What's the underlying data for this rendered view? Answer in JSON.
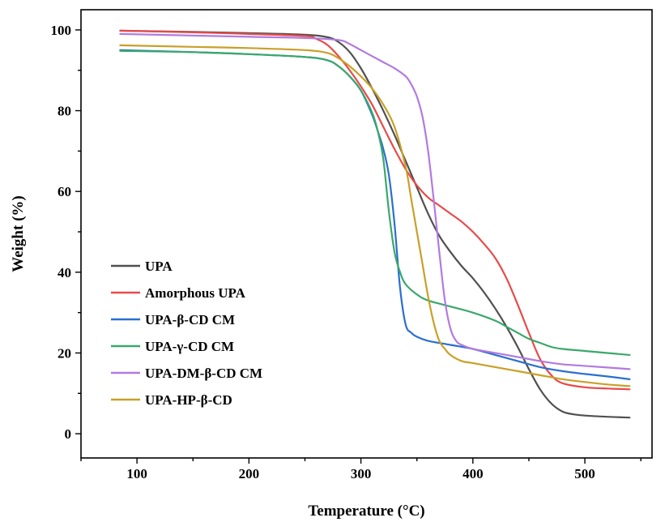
{
  "chart_data": {
    "type": "line",
    "xlabel": "Temperature (°C)",
    "ylabel": "Weight (%)",
    "xlim": [
      50,
      560
    ],
    "ylim": [
      -6,
      105
    ],
    "xticks": [
      100,
      200,
      300,
      400,
      500
    ],
    "yticks": [
      0,
      20,
      40,
      60,
      80,
      100
    ],
    "grid": false,
    "legend_position": "lower-left",
    "series": [
      {
        "name": "UPA",
        "color": "#505050",
        "x": [
          85,
          150,
          200,
          250,
          270,
          280,
          290,
          300,
          310,
          320,
          330,
          340,
          350,
          360,
          370,
          380,
          390,
          400,
          410,
          420,
          430,
          440,
          450,
          460,
          470,
          480,
          490,
          500,
          520,
          540
        ],
        "y": [
          99.8,
          99.5,
          99.2,
          98.8,
          98.2,
          97.0,
          94.5,
          90.5,
          85.5,
          80.0,
          74.0,
          67.5,
          61.0,
          54.5,
          49.0,
          45.0,
          41.5,
          38.5,
          35.0,
          31.0,
          26.5,
          21.5,
          16.0,
          11.0,
          7.5,
          5.5,
          4.8,
          4.5,
          4.2,
          4.0
        ]
      },
      {
        "name": "Amorphous UPA",
        "color": "#e84a4a",
        "x": [
          85,
          150,
          200,
          250,
          260,
          270,
          280,
          290,
          300,
          310,
          320,
          330,
          340,
          350,
          360,
          370,
          380,
          390,
          400,
          410,
          420,
          430,
          440,
          450,
          460,
          470,
          480,
          500,
          520,
          540
        ],
        "y": [
          99.8,
          99.4,
          99.0,
          98.5,
          97.8,
          96.3,
          93.5,
          90.0,
          86.0,
          81.5,
          76.0,
          70.5,
          65.5,
          61.5,
          58.5,
          56.5,
          54.5,
          52.5,
          50.0,
          47.0,
          43.5,
          38.5,
          32.0,
          25.0,
          18.5,
          14.5,
          12.5,
          11.5,
          11.2,
          11.0
        ]
      },
      {
        "name": "UPA-β-CD CM",
        "color": "#2a6fd1",
        "x": [
          85,
          150,
          200,
          250,
          270,
          280,
          290,
          300,
          310,
          315,
          320,
          325,
          330,
          335,
          340,
          345,
          350,
          360,
          380,
          400,
          420,
          440,
          460,
          480,
          500,
          520,
          540
        ],
        "y": [
          95.0,
          94.5,
          94.0,
          93.3,
          92.5,
          91.0,
          88.5,
          85.0,
          79.0,
          75.0,
          70.5,
          64.0,
          52.0,
          36.0,
          27.0,
          25.0,
          24.0,
          23.0,
          22.0,
          21.0,
          19.5,
          18.0,
          16.5,
          15.5,
          14.8,
          14.2,
          13.5
        ]
      },
      {
        "name": "UPA-γ-CD CM",
        "color": "#3aa86b",
        "x": [
          85,
          150,
          200,
          250,
          270,
          280,
          290,
          300,
          310,
          315,
          320,
          325,
          330,
          335,
          340,
          350,
          360,
          380,
          400,
          420,
          430,
          440,
          450,
          460,
          470,
          480,
          500,
          520,
          540
        ],
        "y": [
          94.8,
          94.5,
          94.0,
          93.3,
          92.5,
          91.0,
          88.5,
          85.0,
          79.5,
          75.0,
          68.0,
          55.0,
          45.0,
          40.0,
          37.0,
          34.5,
          33.0,
          31.5,
          30.0,
          28.0,
          26.5,
          25.0,
          23.5,
          22.5,
          21.5,
          21.0,
          20.5,
          20.0,
          19.5
        ]
      },
      {
        "name": "UPA-DM-β-CD CM",
        "color": "#b27ae0",
        "x": [
          85,
          150,
          200,
          250,
          280,
          290,
          300,
          310,
          320,
          330,
          340,
          345,
          350,
          355,
          360,
          365,
          370,
          375,
          380,
          385,
          390,
          400,
          420,
          440,
          460,
          480,
          500,
          520,
          540
        ],
        "y": [
          99.0,
          98.6,
          98.3,
          98.0,
          97.5,
          96.5,
          95.0,
          93.5,
          92.0,
          90.5,
          88.5,
          86.5,
          83.5,
          78.5,
          70.0,
          58.0,
          45.0,
          33.0,
          26.0,
          23.0,
          22.0,
          21.0,
          20.0,
          19.0,
          18.0,
          17.2,
          16.8,
          16.4,
          16.0
        ]
      },
      {
        "name": "UPA-HP-β-CD",
        "color": "#c9a028",
        "x": [
          85,
          150,
          200,
          250,
          270,
          280,
          290,
          300,
          310,
          320,
          330,
          340,
          345,
          350,
          355,
          360,
          365,
          370,
          375,
          380,
          390,
          400,
          420,
          440,
          460,
          480,
          500,
          520,
          540
        ],
        "y": [
          96.2,
          95.8,
          95.5,
          95.0,
          94.3,
          93.0,
          91.0,
          88.5,
          85.5,
          81.5,
          76.0,
          66.0,
          58.0,
          50.0,
          42.0,
          34.0,
          27.5,
          23.0,
          21.0,
          19.5,
          18.0,
          17.5,
          16.5,
          15.5,
          14.5,
          13.5,
          12.8,
          12.2,
          11.8
        ]
      }
    ]
  }
}
